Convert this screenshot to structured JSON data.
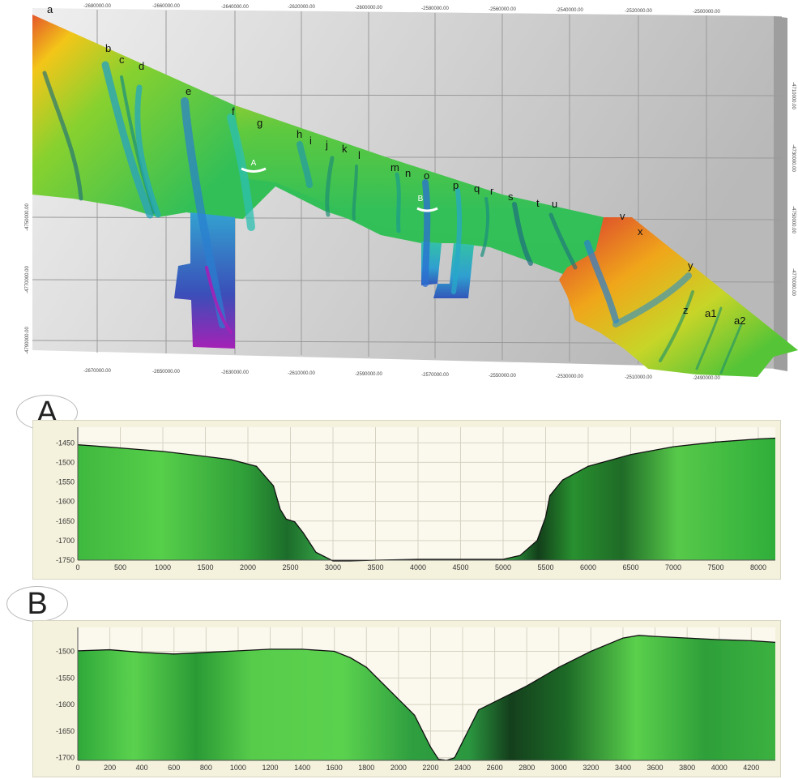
{
  "map": {
    "top_ticks": [
      "-2680000.00",
      "-2660000.00",
      "-2640000.00",
      "-2620000.00",
      "-2600000.00",
      "-2580000.00",
      "-2560000.00",
      "-2540000.00",
      "-2520000.00",
      "-2500000.00"
    ],
    "bottom_ticks": [
      "-2670000.00",
      "-2650000.00",
      "-2630000.00",
      "-2610000.00",
      "-2590000.00",
      "-2570000.00",
      "-2550000.00",
      "-2530000.00",
      "-2510000.00",
      "-2490000.00"
    ],
    "left_ticks": [
      "-4750000.00",
      "-4770000.00",
      "-4790000.00"
    ],
    "right_ticks": [
      "-4710000.00",
      "-4730000.00",
      "-4750000.00",
      "-4770000.00"
    ],
    "canyon_labels": [
      {
        "text": "a"
      },
      {
        "text": "b"
      },
      {
        "text": "c"
      },
      {
        "text": "d"
      },
      {
        "text": "e"
      },
      {
        "text": "f"
      },
      {
        "text": "g"
      },
      {
        "text": "h"
      },
      {
        "text": "i"
      },
      {
        "text": "j"
      },
      {
        "text": "k"
      },
      {
        "text": "l"
      },
      {
        "text": "m"
      },
      {
        "text": "n"
      },
      {
        "text": "o"
      },
      {
        "text": "p"
      },
      {
        "text": "q"
      },
      {
        "text": "r"
      },
      {
        "text": "s"
      },
      {
        "text": "t"
      },
      {
        "text": "u"
      },
      {
        "text": "v"
      },
      {
        "text": "x"
      },
      {
        "text": "y"
      },
      {
        "text": "z"
      },
      {
        "text": "a1"
      },
      {
        "text": "a2"
      }
    ],
    "section_marks": [
      "A",
      "B"
    ],
    "colors": {
      "shallow": "#d9552a",
      "mid": "#f0d000",
      "green": "#4fc53c",
      "cyan": "#34b7c9",
      "deep": "#3a52b6",
      "deepest": "#b11fb3",
      "background": "#d0d0d0"
    }
  },
  "profiles": [
    {
      "label": "A",
      "chart_data": {
        "type": "area",
        "x": [
          0,
          200,
          600,
          1000,
          1400,
          1800,
          2100,
          2300,
          2380,
          2450,
          2550,
          2650,
          2800,
          3000,
          3200,
          3500,
          4000,
          4500,
          5000,
          5200,
          5400,
          5500,
          5550,
          5700,
          6000,
          6500,
          7000,
          7500,
          8000,
          8200
        ],
        "y": [
          -1455,
          -1458,
          -1465,
          -1472,
          -1482,
          -1493,
          -1510,
          -1560,
          -1620,
          -1645,
          -1652,
          -1680,
          -1730,
          -1752,
          -1752,
          -1750,
          -1748,
          -1748,
          -1748,
          -1738,
          -1700,
          -1640,
          -1585,
          -1545,
          -1510,
          -1480,
          -1460,
          -1448,
          -1440,
          -1438
        ],
        "xlim": [
          0,
          8200
        ],
        "ylim": [
          -1750,
          -1410
        ],
        "x_ticks": [
          0,
          500,
          1000,
          1500,
          2000,
          2500,
          3000,
          3500,
          4000,
          4500,
          5000,
          5500,
          6000,
          6500,
          7000,
          7500,
          8000
        ],
        "y_ticks": [
          -1450,
          -1500,
          -1550,
          -1600,
          -1650,
          -1700,
          -1750
        ],
        "grid": true
      }
    },
    {
      "label": "B",
      "chart_data": {
        "type": "area",
        "x": [
          0,
          200,
          400,
          600,
          800,
          1000,
          1200,
          1400,
          1600,
          1700,
          1800,
          1900,
          2000,
          2100,
          2150,
          2200,
          2250,
          2300,
          2350,
          2400,
          2450,
          2500,
          2600,
          2800,
          3000,
          3200,
          3400,
          3500,
          3600,
          3800,
          4000,
          4200,
          4350
        ],
        "y": [
          -1499,
          -1497,
          -1502,
          -1505,
          -1502,
          -1499,
          -1496,
          -1496,
          -1500,
          -1512,
          -1530,
          -1560,
          -1590,
          -1620,
          -1650,
          -1680,
          -1703,
          -1705,
          -1700,
          -1670,
          -1640,
          -1610,
          -1595,
          -1565,
          -1530,
          -1500,
          -1475,
          -1470,
          -1472,
          -1475,
          -1478,
          -1480,
          -1483
        ],
        "xlim": [
          0,
          4350
        ],
        "ylim": [
          -1705,
          -1455
        ],
        "x_ticks": [
          0,
          200,
          400,
          600,
          800,
          1000,
          1200,
          1400,
          1600,
          1800,
          2000,
          2200,
          2400,
          2600,
          2800,
          3000,
          3200,
          3400,
          3600,
          3800,
          4000,
          4200
        ],
        "y_ticks": [
          -1500,
          -1550,
          -1600,
          -1650,
          -1700
        ],
        "grid": true
      }
    }
  ]
}
